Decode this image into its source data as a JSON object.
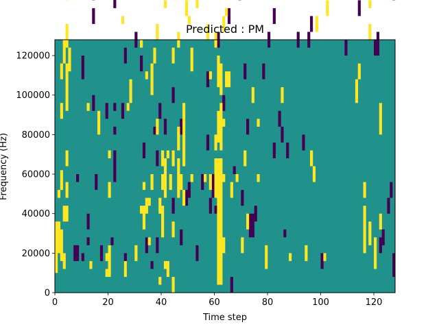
{
  "chart_data": {
    "type": "heatmap",
    "title": "Predicted : PM",
    "xlabel": "Time step",
    "ylabel": "Frequency (Hz)",
    "xlim": [
      0,
      128
    ],
    "ylim": [
      0,
      128000
    ],
    "x_ticks": [
      {
        "value": 0,
        "label": "0"
      },
      {
        "value": 20,
        "label": "20"
      },
      {
        "value": 40,
        "label": "40"
      },
      {
        "value": 60,
        "label": "60"
      },
      {
        "value": 80,
        "label": "80"
      },
      {
        "value": 100,
        "label": "100"
      },
      {
        "value": 120,
        "label": "120"
      }
    ],
    "y_ticks": [
      {
        "value": 0,
        "label": "0"
      },
      {
        "value": 20000,
        "label": "20000"
      },
      {
        "value": 40000,
        "label": "40000"
      },
      {
        "value": 60000,
        "label": "60000"
      },
      {
        "value": 80000,
        "label": "80000"
      },
      {
        "value": 100000,
        "label": "100000"
      },
      {
        "value": 120000,
        "label": "120000"
      }
    ],
    "colormap": {
      "low": "#440154",
      "mid": "#21918c",
      "high": "#fde725"
    },
    "background_level": "mid",
    "cell_height_hz": 4000,
    "high_segments": [
      [
        0,
        5,
        18
      ],
      [
        1,
        10,
        18
      ],
      [
        1,
        24,
        26
      ],
      [
        2,
        8,
        16
      ],
      [
        2,
        26,
        31
      ],
      [
        2,
        44,
        48
      ],
      [
        2,
        54,
        58
      ],
      [
        3,
        6,
        10
      ],
      [
        3,
        18,
        22
      ],
      [
        3,
        58,
        64
      ],
      [
        3,
        106,
        110
      ],
      [
        3,
        114,
        116
      ],
      [
        4,
        18,
        22
      ],
      [
        4,
        24,
        28
      ],
      [
        4,
        32,
        36
      ],
      [
        4,
        46,
        58
      ],
      [
        4,
        62,
        68
      ],
      [
        4,
        74,
        80
      ],
      [
        5,
        56,
        62
      ],
      [
        5,
        80,
        84
      ],
      [
        5,
        86,
        90
      ],
      [
        5,
        126,
        128
      ],
      [
        6,
        96,
        110
      ],
      [
        8,
        78,
        82
      ],
      [
        12,
        46,
        48
      ],
      [
        13,
        6,
        8
      ],
      [
        13,
        82,
        86
      ],
      [
        13,
        112,
        114
      ],
      [
        15,
        78,
        82
      ],
      [
        16,
        40,
        46
      ],
      [
        18,
        88,
        92
      ],
      [
        19,
        4,
        6
      ],
      [
        19,
        8,
        10
      ],
      [
        20,
        4,
        12
      ],
      [
        20,
        24,
        28
      ],
      [
        20,
        34,
        36
      ],
      [
        20,
        108,
        112
      ],
      [
        23,
        104,
        110
      ],
      [
        25,
        68,
        70
      ],
      [
        26,
        4,
        8
      ],
      [
        27,
        46,
        48
      ],
      [
        28,
        48,
        54
      ],
      [
        30,
        8,
        12
      ],
      [
        32,
        20,
        22
      ],
      [
        32,
        62,
        64
      ],
      [
        33,
        16,
        22
      ],
      [
        33,
        26,
        28
      ],
      [
        33,
        90,
        94
      ],
      [
        34,
        20,
        24
      ],
      [
        34,
        54,
        56
      ],
      [
        35,
        12,
        14
      ],
      [
        35,
        22,
        24
      ],
      [
        36,
        26,
        30
      ],
      [
        36,
        50,
        58
      ],
      [
        37,
        58,
        62
      ],
      [
        38,
        40,
        44
      ],
      [
        38,
        64,
        68
      ],
      [
        39,
        2,
        4
      ],
      [
        39,
        20,
        24
      ],
      [
        40,
        14,
        22
      ],
      [
        40,
        26,
        30
      ],
      [
        40,
        32,
        36
      ],
      [
        40,
        80,
        84
      ],
      [
        41,
        6,
        8
      ],
      [
        41,
        24,
        34
      ],
      [
        41,
        72,
        74
      ],
      [
        42,
        4,
        8
      ],
      [
        42,
        34,
        36
      ],
      [
        42,
        98,
        102
      ],
      [
        43,
        26,
        30
      ],
      [
        44,
        0,
        4
      ],
      [
        44,
        14,
        18
      ],
      [
        44,
        32,
        36
      ],
      [
        44,
        58,
        62
      ],
      [
        45,
        74,
        78
      ],
      [
        46,
        24,
        34
      ],
      [
        46,
        36,
        42
      ],
      [
        46,
        62,
        66
      ],
      [
        47,
        26,
        30
      ],
      [
        47,
        80,
        84
      ],
      [
        48,
        22,
        26
      ],
      [
        48,
        32,
        48
      ],
      [
        49,
        70,
        74
      ],
      [
        50,
        68,
        70
      ],
      [
        50,
        74,
        78
      ],
      [
        51,
        28,
        30
      ],
      [
        51,
        56,
        62
      ],
      [
        53,
        72,
        76
      ],
      [
        56,
        28,
        30
      ],
      [
        56,
        82,
        86
      ],
      [
        57,
        64,
        68
      ],
      [
        57,
        106,
        112
      ],
      [
        58,
        26,
        30
      ],
      [
        58,
        54,
        56
      ],
      [
        60,
        24,
        34
      ],
      [
        60,
        36,
        40
      ],
      [
        60,
        62,
        66
      ],
      [
        61,
        2,
        34
      ],
      [
        61,
        38,
        46
      ],
      [
        61,
        52,
        60
      ],
      [
        61,
        108,
        112
      ],
      [
        62,
        2,
        34
      ],
      [
        62,
        36,
        48
      ],
      [
        62,
        50,
        58
      ],
      [
        62,
        88,
        92
      ],
      [
        63,
        10,
        14
      ],
      [
        63,
        28,
        30
      ],
      [
        63,
        42,
        44
      ],
      [
        63,
        66,
        70
      ],
      [
        64,
        52,
        56
      ],
      [
        64,
        70,
        72
      ],
      [
        65,
        52,
        56
      ],
      [
        66,
        24,
        28
      ],
      [
        68,
        28,
        30
      ],
      [
        70,
        10,
        14
      ],
      [
        71,
        32,
        36
      ],
      [
        72,
        16,
        20
      ],
      [
        72,
        82,
        86
      ],
      [
        74,
        48,
        52
      ],
      [
        76,
        28,
        30
      ],
      [
        76,
        42,
        44
      ],
      [
        76,
        76,
        80
      ],
      [
        79,
        6,
        12
      ],
      [
        85,
        48,
        52
      ],
      [
        88,
        8,
        10
      ],
      [
        88,
        78,
        82
      ],
      [
        89,
        106,
        110
      ],
      [
        90,
        76,
        90
      ],
      [
        92,
        88,
        92
      ],
      [
        93,
        88,
        92
      ],
      [
        94,
        8,
        12
      ],
      [
        96,
        32,
        36
      ],
      [
        97,
        28,
        32
      ],
      [
        98,
        66,
        70
      ],
      [
        98,
        80,
        84
      ],
      [
        101,
        8,
        10
      ],
      [
        102,
        70,
        74
      ],
      [
        106,
        108,
        112
      ],
      [
        113,
        48,
        54
      ],
      [
        114,
        54,
        58
      ],
      [
        116,
        10,
        22
      ],
      [
        116,
        24,
        28
      ],
      [
        116,
        122,
        126
      ],
      [
        117,
        84,
        90
      ],
      [
        117,
        126,
        128
      ],
      [
        118,
        12,
        18
      ],
      [
        118,
        64,
        68
      ],
      [
        118,
        72,
        74
      ],
      [
        120,
        6,
        14
      ],
      [
        121,
        110,
        114
      ],
      [
        122,
        16,
        20
      ],
      [
        122,
        40,
        48
      ]
    ],
    "low_segments": [
      [
        7,
        8,
        12
      ],
      [
        7,
        110,
        114
      ],
      [
        8,
        8,
        12
      ],
      [
        8,
        28,
        30
      ],
      [
        8,
        100,
        104
      ],
      [
        10,
        8,
        10
      ],
      [
        10,
        54,
        60
      ],
      [
        10,
        84,
        88
      ],
      [
        12,
        12,
        14
      ],
      [
        12,
        16,
        20
      ],
      [
        12,
        90,
        94
      ],
      [
        14,
        46,
        50
      ],
      [
        14,
        68,
        72
      ],
      [
        14,
        74,
        78
      ],
      [
        15,
        26,
        30
      ],
      [
        17,
        8,
        12
      ],
      [
        19,
        44,
        48
      ],
      [
        20,
        76,
        80
      ],
      [
        21,
        12,
        14
      ],
      [
        22,
        28,
        36
      ],
      [
        22,
        40,
        42
      ],
      [
        22,
        46,
        48
      ],
      [
        22,
        72,
        76
      ],
      [
        22,
        84,
        88
      ],
      [
        25,
        44,
        48
      ],
      [
        26,
        6,
        10
      ],
      [
        26,
        58,
        62
      ],
      [
        27,
        46,
        48
      ],
      [
        28,
        80,
        84
      ],
      [
        30,
        62,
        66
      ],
      [
        32,
        56,
        60
      ],
      [
        33,
        34,
        38
      ],
      [
        34,
        10,
        14
      ],
      [
        36,
        6,
        8
      ],
      [
        37,
        40,
        42
      ],
      [
        38,
        10,
        14
      ],
      [
        38,
        32,
        36
      ],
      [
        38,
        104,
        108
      ],
      [
        39,
        44,
        48
      ],
      [
        40,
        82,
        86
      ],
      [
        41,
        40,
        44
      ],
      [
        44,
        20,
        24
      ],
      [
        44,
        48,
        52
      ],
      [
        47,
        12,
        16
      ],
      [
        47,
        40,
        44
      ],
      [
        49,
        22,
        26
      ],
      [
        50,
        24,
        28
      ],
      [
        53,
        8,
        12
      ],
      [
        55,
        26,
        30
      ],
      [
        56,
        80,
        84
      ],
      [
        57,
        36,
        40
      ],
      [
        57,
        52,
        56
      ],
      [
        58,
        20,
        24
      ],
      [
        59,
        24,
        30
      ],
      [
        60,
        20,
        22
      ],
      [
        60,
        84,
        88
      ],
      [
        61,
        62,
        66
      ],
      [
        62,
        84,
        88
      ],
      [
        63,
        46,
        50
      ],
      [
        65,
        68,
        72
      ],
      [
        66,
        0,
        4
      ],
      [
        67,
        30,
        32
      ],
      [
        69,
        74,
        80
      ],
      [
        70,
        22,
        26
      ],
      [
        71,
        54,
        58
      ],
      [
        72,
        40,
        44
      ],
      [
        73,
        14,
        20
      ],
      [
        74,
        14,
        20
      ],
      [
        75,
        18,
        22
      ],
      [
        78,
        54,
        58
      ],
      [
        79,
        94,
        102
      ],
      [
        80,
        62,
        66
      ],
      [
        82,
        34,
        38
      ],
      [
        82,
        68,
        72
      ],
      [
        84,
        42,
        46
      ],
      [
        85,
        38,
        42
      ],
      [
        86,
        14,
        16
      ],
      [
        87,
        34,
        38
      ],
      [
        88,
        78,
        82
      ],
      [
        89,
        78,
        84
      ],
      [
        90,
        96,
        100
      ],
      [
        91,
        62,
        66
      ],
      [
        92,
        88,
        92
      ],
      [
        93,
        36,
        40
      ],
      [
        95,
        62,
        66
      ],
      [
        96,
        66,
        70
      ],
      [
        96,
        82,
        86
      ],
      [
        97,
        104,
        110
      ],
      [
        100,
        6,
        10
      ],
      [
        101,
        78,
        82
      ],
      [
        102,
        102,
        106
      ],
      [
        105,
        104,
        108
      ],
      [
        106,
        124,
        128
      ],
      [
        108,
        100,
        104
      ],
      [
        109,
        60,
        64
      ],
      [
        112,
        80,
        84
      ],
      [
        114,
        70,
        74
      ],
      [
        115,
        76,
        82
      ],
      [
        115,
        104,
        108
      ],
      [
        117,
        114,
        118
      ],
      [
        118,
        104,
        108
      ],
      [
        119,
        114,
        118
      ],
      [
        120,
        60,
        64
      ],
      [
        121,
        60,
        66
      ],
      [
        122,
        10,
        14
      ],
      [
        123,
        12,
        16
      ],
      [
        124,
        106,
        112
      ],
      [
        124,
        118,
        122
      ],
      [
        125,
        20,
        24
      ],
      [
        126,
        24,
        28
      ],
      [
        126,
        100,
        104
      ],
      [
        127,
        4,
        10
      ],
      [
        127,
        74,
        78
      ],
      [
        127,
        118,
        122
      ]
    ]
  }
}
